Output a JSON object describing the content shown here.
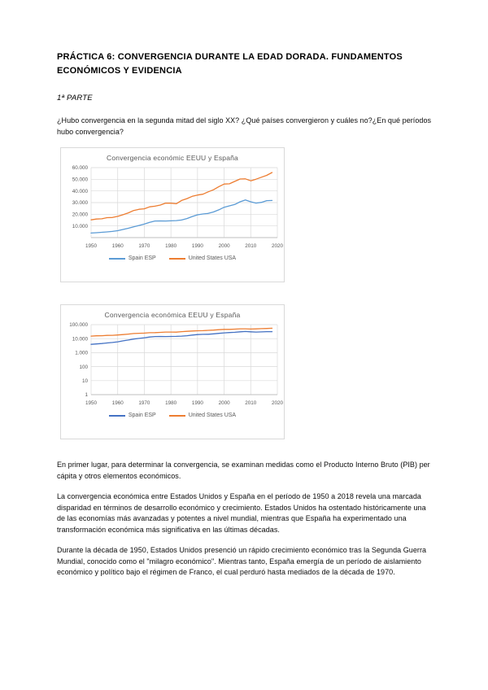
{
  "document": {
    "title": "PRÁCTICA 6: CONVERGENCIA DURANTE LA EDAD DORADA. FUNDAMENTOS ECONÓMICOS Y EVIDENCIA",
    "part_label": "1ª PARTE",
    "question": "¿Hubo convergencia en la segunda mitad del siglo XX? ¿Qué países convergieron y cuáles no?¿En qué períodos hubo convergencia?",
    "paragraphs": [
      "En primer lugar, para determinar la convergencia, se examinan medidas como el Producto Interno Bruto (PIB) per cápita y otros elementos económicos.",
      "La convergencia económica entre Estados Unidos y España en el período de 1950 a 2018 revela una marcada disparidad en términos de desarrollo económico y crecimiento. Estados Unidos ha ostentado históricamente una de las economías más avanzadas y potentes a nivel mundial, mientras que España ha experimentado una transformación económica más significativa en las últimas décadas.",
      "Durante la década de 1950, Estados Unidos presenció un rápido crecimiento económico tras la Segunda Guerra Mundial, conocido como el \"milagro económico\". Mientras tanto, España emergía de un período de aislamiento económico y político bajo el régimen de Franco, el cual perduró hasta mediados de la década de 1970."
    ]
  },
  "chart_data": [
    {
      "type": "line",
      "title": "Convergencia económic EEUU y España",
      "xlabel": "",
      "ylabel": "",
      "y_scale": "linear",
      "xlim": [
        1950,
        2020
      ],
      "ylim": [
        0,
        60000
      ],
      "grid": true,
      "legend_position": "bottom",
      "x_ticks": [
        1950,
        1960,
        1970,
        1980,
        1990,
        2000,
        2010,
        2020
      ],
      "y_ticks": [
        {
          "value": 60000,
          "label": "60.000"
        },
        {
          "value": 50000,
          "label": "50.000"
        },
        {
          "value": 40000,
          "label": "40.000"
        },
        {
          "value": 30000,
          "label": "30.000"
        },
        {
          "value": 20000,
          "label": "20.000"
        },
        {
          "value": 10000,
          "label": "10.000"
        }
      ],
      "x": [
        1950,
        1952,
        1954,
        1956,
        1958,
        1960,
        1962,
        1964,
        1966,
        1968,
        1970,
        1972,
        1974,
        1976,
        1978,
        1980,
        1982,
        1984,
        1986,
        1988,
        1990,
        1992,
        1994,
        1996,
        1998,
        2000,
        2002,
        2004,
        2006,
        2008,
        2010,
        2012,
        2014,
        2016,
        2018
      ],
      "series": [
        {
          "name": "Spain ESP",
          "color": "#5B9BD5",
          "values": [
            3900,
            4200,
            4500,
            4900,
            5300,
            5900,
            7000,
            8000,
            9300,
            10400,
            11600,
            13100,
            14200,
            14300,
            14200,
            14400,
            14600,
            15100,
            16300,
            18100,
            19500,
            20200,
            20700,
            22000,
            23800,
            26000,
            27200,
            28400,
            30700,
            32300,
            30700,
            29600,
            30200,
            31700,
            31800
          ]
        },
        {
          "name": "United States USA",
          "color": "#ED7D31",
          "values": [
            15200,
            15900,
            16100,
            17100,
            17200,
            18200,
            19600,
            21200,
            23200,
            24300,
            24700,
            26400,
            26900,
            27900,
            29600,
            29500,
            29000,
            31800,
            33400,
            35400,
            36500,
            37200,
            39200,
            41000,
            43700,
            45900,
            46100,
            48200,
            50200,
            50400,
            48700,
            50100,
            51800,
            53400,
            55800
          ]
        }
      ]
    },
    {
      "type": "line",
      "title": "Convergencia económica EEUU y España",
      "xlabel": "",
      "ylabel": "",
      "y_scale": "log",
      "xlim": [
        1950,
        2020
      ],
      "ylim": [
        1,
        100000
      ],
      "grid": true,
      "legend_position": "bottom",
      "x_ticks": [
        1950,
        1960,
        1970,
        1980,
        1990,
        2000,
        2010,
        2020
      ],
      "y_ticks": [
        {
          "value": 100000,
          "label": "100.000"
        },
        {
          "value": 10000,
          "label": "10.000"
        },
        {
          "value": 1000,
          "label": "1.000"
        },
        {
          "value": 100,
          "label": "100"
        },
        {
          "value": 10,
          "label": "10"
        },
        {
          "value": 1,
          "label": "1"
        }
      ],
      "x": [
        1950,
        1952,
        1954,
        1956,
        1958,
        1960,
        1962,
        1964,
        1966,
        1968,
        1970,
        1972,
        1974,
        1976,
        1978,
        1980,
        1982,
        1984,
        1986,
        1988,
        1990,
        1992,
        1994,
        1996,
        1998,
        2000,
        2002,
        2004,
        2006,
        2008,
        2010,
        2012,
        2014,
        2016,
        2018
      ],
      "series": [
        {
          "name": "Spain ESP",
          "color": "#4472C4",
          "values": [
            3900,
            4200,
            4500,
            4900,
            5300,
            5900,
            7000,
            8000,
            9300,
            10400,
            11600,
            13100,
            14200,
            14300,
            14200,
            14400,
            14600,
            15100,
            16300,
            18100,
            19500,
            20200,
            20700,
            22000,
            23800,
            26000,
            27200,
            28400,
            30700,
            32300,
            30700,
            29600,
            30200,
            31700,
            31800
          ]
        },
        {
          "name": "United States USA",
          "color": "#ED7D31",
          "values": [
            15200,
            15900,
            16100,
            17100,
            17200,
            18200,
            19600,
            21200,
            23200,
            24300,
            24700,
            26400,
            26900,
            27900,
            29600,
            29500,
            29000,
            31800,
            33400,
            35400,
            36500,
            37200,
            39200,
            41000,
            43700,
            45900,
            46100,
            48200,
            50200,
            50400,
            48700,
            50100,
            51800,
            53400,
            55800
          ]
        }
      ]
    }
  ],
  "colors": {
    "grid": "#d9d9d9",
    "axis": "#bfbfbf",
    "tick_text": "#595959"
  }
}
